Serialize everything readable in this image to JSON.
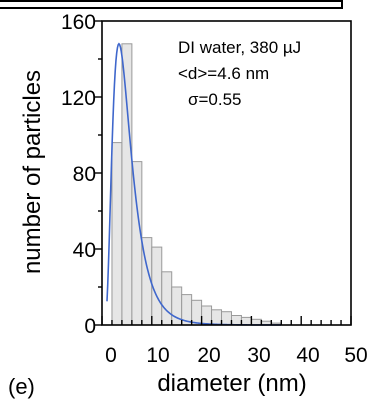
{
  "chart_data": {
    "type": "bar",
    "panel_label": "(e)",
    "xlabel": "diameter (nm)",
    "ylabel": "number of particles",
    "xlim": [
      0,
      50
    ],
    "ylim": [
      0,
      160
    ],
    "x_ticks": [
      "0",
      "10",
      "20",
      "30",
      "40",
      "50"
    ],
    "y_ticks": [
      "0",
      "40",
      "80",
      "120",
      "160"
    ],
    "annotations": [
      "DI water, 380 µJ",
      "<d>=4.6 nm",
      "σ=0.55"
    ],
    "bin_width": 2,
    "bins": [
      {
        "x0": 2,
        "value": 96
      },
      {
        "x0": 4,
        "value": 148
      },
      {
        "x0": 6,
        "value": 86
      },
      {
        "x0": 8,
        "value": 46
      },
      {
        "x0": 10,
        "value": 41
      },
      {
        "x0": 12,
        "value": 28
      },
      {
        "x0": 14,
        "value": 20
      },
      {
        "x0": 16,
        "value": 16
      },
      {
        "x0": 18,
        "value": 13
      },
      {
        "x0": 20,
        "value": 10
      },
      {
        "x0": 22,
        "value": 8
      },
      {
        "x0": 24,
        "value": 7
      },
      {
        "x0": 26,
        "value": 5
      },
      {
        "x0": 28,
        "value": 4
      },
      {
        "x0": 30,
        "value": 3
      },
      {
        "x0": 32,
        "value": 2
      },
      {
        "x0": 34,
        "value": 1
      }
    ],
    "fit": {
      "type": "lognormal",
      "median": 4.6,
      "sigma": 0.55,
      "peak": 148
    },
    "colors": {
      "bar_fill": "#e6e6e6",
      "bar_stroke": "#9a9a9a",
      "fit_line": "#3f67cc",
      "axis": "#000000"
    }
  }
}
